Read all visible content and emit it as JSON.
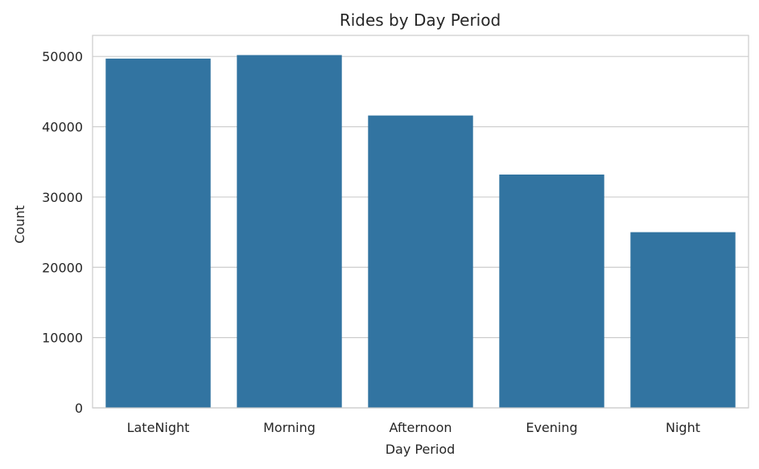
{
  "chart_data": {
    "type": "bar",
    "title": "Rides by Day Period",
    "xlabel": "Day Period",
    "ylabel": "Count",
    "categories": [
      "LateNight",
      "Morning",
      "Afternoon",
      "Evening",
      "Night"
    ],
    "values": [
      49700,
      50200,
      41600,
      33200,
      25000
    ],
    "ylim": [
      0,
      53000
    ],
    "yticks": [
      0,
      10000,
      20000,
      30000,
      40000,
      50000
    ],
    "grid": true,
    "bar_color": "#3274A1"
  }
}
